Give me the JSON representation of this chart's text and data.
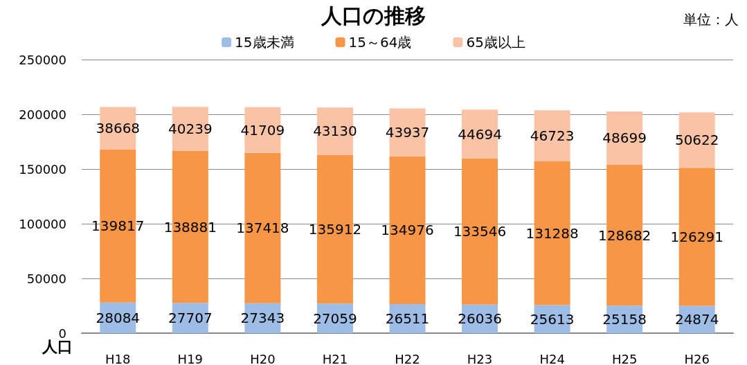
{
  "chart_data": {
    "type": "bar",
    "title": "人口の推移",
    "ylabel": "人口",
    "annotations": [
      "単位：人"
    ],
    "categories": [
      "H18",
      "H19",
      "H20",
      "H21",
      "H22",
      "H23",
      "H24",
      "H25",
      "H26"
    ],
    "series": [
      {
        "name": "15歳未満",
        "color": "#9dbde6",
        "values": [
          28084,
          27707,
          27343,
          27059,
          26511,
          26036,
          25613,
          25158,
          24874
        ]
      },
      {
        "name": "15～64歳",
        "color": "#f79646",
        "values": [
          139817,
          138881,
          137418,
          135912,
          134976,
          133546,
          131288,
          128682,
          126291
        ]
      },
      {
        "name": "65歳以上",
        "color": "#fac3a6",
        "values": [
          38668,
          40239,
          41709,
          43130,
          43937,
          44694,
          46723,
          48699,
          50622
        ]
      }
    ],
    "stacked": true,
    "data_labels": true,
    "ylim": [
      0,
      250000
    ],
    "yticks": [
      0,
      50000,
      100000,
      150000,
      200000,
      250000
    ],
    "grid": "y",
    "legend": "top"
  }
}
